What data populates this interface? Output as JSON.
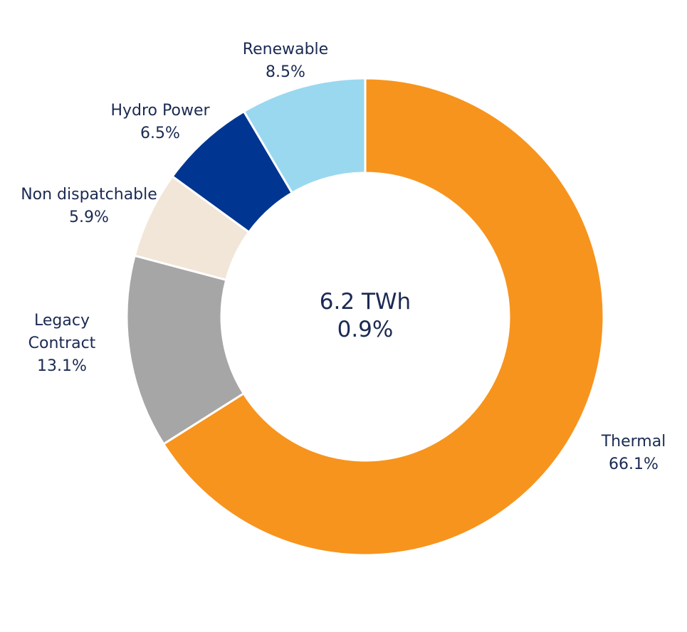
{
  "chart_data": {
    "type": "pie",
    "style": "donut",
    "center_text": {
      "line1": "6.2 TWh",
      "line2": "0.9%"
    },
    "slices": [
      {
        "name": "Thermal",
        "label_lines": [
          "Thermal",
          "66.1%"
        ],
        "value": 66.1,
        "color": "#f7941d"
      },
      {
        "name": "Legacy Contract",
        "label_lines": [
          "Legacy",
          "Contract",
          "13.1%"
        ],
        "value": 13.1,
        "color": "#a6a6a6"
      },
      {
        "name": "Non dispatchable",
        "label_lines": [
          "Non dispatchable",
          "5.9%"
        ],
        "value": 5.9,
        "color": "#f2e6d8"
      },
      {
        "name": "Hydro Power",
        "label_lines": [
          "Hydro Power",
          "6.5%"
        ],
        "value": 6.5,
        "color": "#003591"
      },
      {
        "name": "Renewable",
        "label_lines": [
          "Renewable",
          "8.5%"
        ],
        "value": 8.5,
        "color": "#9ad8f0"
      }
    ]
  }
}
